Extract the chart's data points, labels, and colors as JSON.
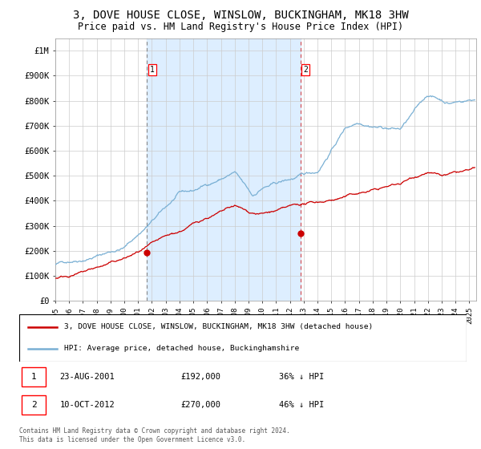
{
  "title": "3, DOVE HOUSE CLOSE, WINSLOW, BUCKINGHAM, MK18 3HW",
  "subtitle": "Price paid vs. HM Land Registry's House Price Index (HPI)",
  "title_fontsize": 10,
  "subtitle_fontsize": 8.5,
  "xlim_start": 1995.0,
  "xlim_end": 2025.5,
  "ylim": [
    0,
    1050000
  ],
  "yticks": [
    0,
    100000,
    200000,
    300000,
    400000,
    500000,
    600000,
    700000,
    800000,
    900000,
    1000000
  ],
  "ytick_labels": [
    "£0",
    "£100K",
    "£200K",
    "£300K",
    "£400K",
    "£500K",
    "£600K",
    "£700K",
    "£800K",
    "£900K",
    "£1M"
  ],
  "xticks": [
    1995,
    1996,
    1997,
    1998,
    1999,
    2000,
    2001,
    2002,
    2003,
    2004,
    2005,
    2006,
    2007,
    2008,
    2009,
    2010,
    2011,
    2012,
    2013,
    2014,
    2015,
    2016,
    2017,
    2018,
    2019,
    2020,
    2021,
    2022,
    2023,
    2024,
    2025
  ],
  "sale1_x": 2001.647,
  "sale1_y": 192000,
  "sale1_label": "1",
  "sale2_x": 2012.775,
  "sale2_y": 270000,
  "sale2_label": "2",
  "shade_start": 2001.647,
  "shade_end": 2012.775,
  "shade_color": "#ddeeff",
  "hpi_color": "#7ab0d4",
  "price_color": "#cc0000",
  "grid_color": "#cccccc",
  "background_color": "#ffffff",
  "legend_line1": "3, DOVE HOUSE CLOSE, WINSLOW, BUCKINGHAM, MK18 3HW (detached house)",
  "legend_line2": "HPI: Average price, detached house, Buckinghamshire",
  "annotation1_date": "23-AUG-2001",
  "annotation1_price": "£192,000",
  "annotation1_hpi": "36% ↓ HPI",
  "annotation2_date": "10-OCT-2012",
  "annotation2_price": "£270,000",
  "annotation2_hpi": "46% ↓ HPI",
  "footnote": "Contains HM Land Registry data © Crown copyright and database right 2024.\nThis data is licensed under the Open Government Licence v3.0."
}
